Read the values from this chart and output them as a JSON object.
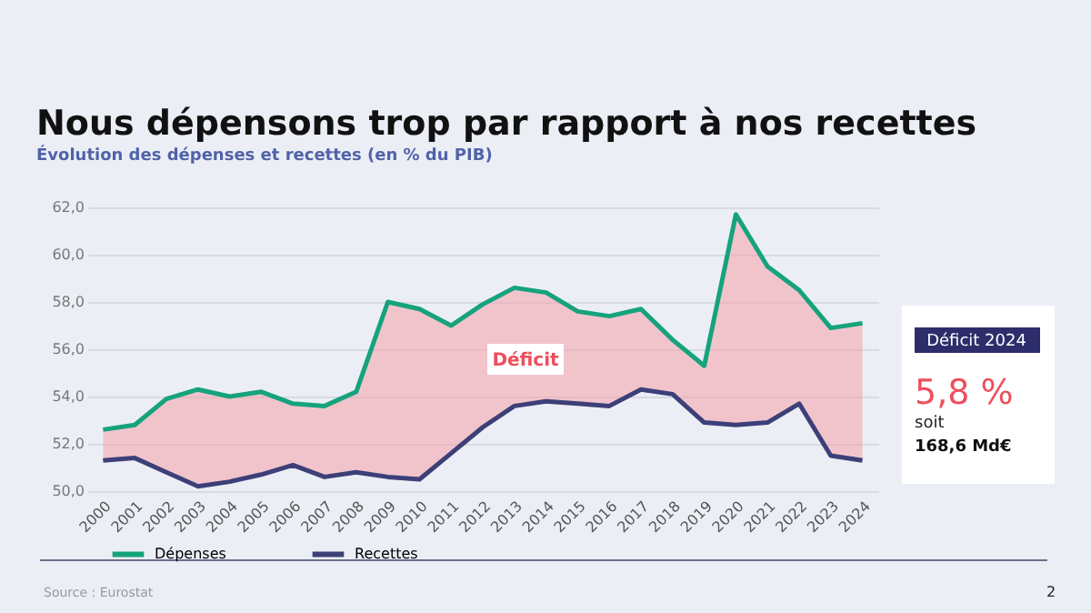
{
  "chart_data": {
    "type": "line",
    "title": "Nous dépensons trop par rapport à nos recettes",
    "subtitle": "Évolution des dépenses et recettes (en % du PIB)",
    "categories": [
      "2000",
      "2001",
      "2002",
      "2003",
      "2004",
      "2005",
      "2006",
      "2007",
      "2008",
      "2009",
      "2010",
      "2011",
      "2012",
      "2013",
      "2014",
      "2015",
      "2016",
      "2017",
      "2018",
      "2019",
      "2020",
      "2021",
      "2022",
      "2023",
      "2024"
    ],
    "series": [
      {
        "name": "Dépenses",
        "color": "#16a37c",
        "values": [
          52.6,
          52.8,
          53.9,
          54.3,
          54.0,
          54.2,
          53.7,
          53.6,
          54.2,
          58.0,
          57.7,
          57.0,
          57.9,
          58.6,
          58.4,
          57.6,
          57.4,
          57.7,
          56.4,
          55.3,
          61.7,
          59.5,
          58.5,
          56.9,
          57.1
        ],
        "lower": [
          51.3,
          51.4,
          50.8,
          50.2,
          50.4,
          50.7,
          51.1,
          50.6,
          50.8,
          50.6,
          50.5,
          51.6,
          52.7,
          53.6,
          53.8,
          53.7,
          53.6,
          54.3,
          54.1,
          52.9,
          52.8,
          52.9,
          53.7,
          51.5,
          51.3
        ],
        "upper": [
          52.6,
          52.8,
          53.9,
          54.3,
          54.0,
          54.2,
          53.7,
          53.6,
          54.2,
          58.0,
          57.7,
          57.0,
          57.9,
          58.6,
          58.4,
          57.6,
          57.4,
          57.7,
          56.4,
          55.3,
          61.7,
          59.5,
          58.5,
          56.9,
          57.1
        ]
      },
      {
        "name": "Recettes",
        "color": "#3d3f78",
        "values": [
          51.3,
          51.4,
          50.8,
          50.2,
          50.4,
          50.7,
          51.1,
          50.6,
          50.8,
          50.6,
          50.5,
          51.6,
          52.7,
          53.6,
          53.8,
          53.7,
          53.6,
          54.3,
          54.1,
          52.9,
          52.8,
          52.9,
          53.7,
          51.5,
          51.3
        ]
      }
    ],
    "ylim": [
      50,
      62
    ],
    "yticks": [
      {
        "value": 50,
        "label": "50,0"
      },
      {
        "value": 52,
        "label": "52,0"
      },
      {
        "value": 54,
        "label": "54,0"
      },
      {
        "value": 56,
        "label": "56,0"
      },
      {
        "value": 58,
        "label": "58,0"
      },
      {
        "value": 60,
        "label": "60,0"
      },
      {
        "value": 62,
        "label": "62,0"
      }
    ],
    "grid": "y",
    "legend": "bottom",
    "marker": "none",
    "line_style": "solid",
    "annotations": [
      "Déficit",
      "Déficit 2024",
      "5,8 %",
      "soit",
      "168,6 Md€",
      "Source : Eurostat",
      "2"
    ]
  }
}
